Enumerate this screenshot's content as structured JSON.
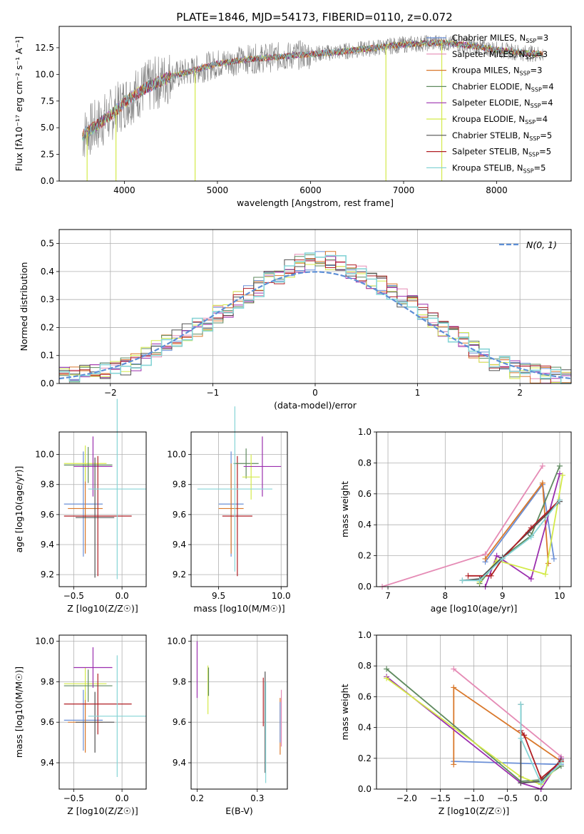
{
  "figure_title": "PLATE=1846, MJD=54173, FIBERID=0110, z=0.072",
  "colors": {
    "Chabrier MILES": "#6a8fd6",
    "Salpeter MILES": "#e58bb5",
    "Kroupa MILES": "#d9782b",
    "Chabrier ELODIE": "#5f8a5f",
    "Salpeter ELODIE": "#9b2fae",
    "Kroupa ELODIE": "#d4ea4a",
    "Chabrier STELIB": "#505050",
    "Salpeter STELIB": "#b01e24",
    "Kroupa STELIB": "#86d4d6",
    "gaussian": "#5d8fd6"
  },
  "chart_data": [
    {
      "id": "spectrum",
      "type": "line",
      "title": "PLATE=1846, MJD=54173, FIBERID=0110, z=0.072",
      "xlabel": "wavelength [Angstrom, rest frame]",
      "ylabel": "Flux [fλ10⁻¹⁷ erg cm⁻² s⁻¹ A⁻¹]",
      "xlim": [
        3300,
        8800
      ],
      "ylim": [
        0,
        14.5
      ],
      "xticks": [
        4000,
        5000,
        6000,
        7000,
        8000
      ],
      "yticks": [
        0.0,
        2.5,
        5.0,
        7.5,
        10.0,
        12.5
      ],
      "legend_position": "right",
      "legend": [
        "Chabrier MILES, N_SSP=3",
        "Salpeter MILES, N_SSP=3",
        "Kroupa MILES, N_SSP=3",
        "Chabrier ELODIE, N_SSP=4",
        "Salpeter ELODIE, N_SSP=4",
        "Kroupa ELODIE, N_SSP=4",
        "Chabrier STELIB, N_SSP=5",
        "Salpeter STELIB, N_SSP=5",
        "Kroupa STELIB, N_SSP=5"
      ],
      "legend_parts": [
        {
          "pre": "Chabrier MILES, N",
          "sub": "SSP",
          "post": "=3"
        },
        {
          "pre": "Salpeter MILES, N",
          "sub": "SSP",
          "post": "=3"
        },
        {
          "pre": "Kroupa MILES, N",
          "sub": "SSP",
          "post": "=3"
        },
        {
          "pre": "Chabrier ELODIE, N",
          "sub": "SSP",
          "post": "=4"
        },
        {
          "pre": "Salpeter ELODIE, N",
          "sub": "SSP",
          "post": "=4"
        },
        {
          "pre": "Kroupa ELODIE, N",
          "sub": "SSP",
          "post": "=4"
        },
        {
          "pre": "Chabrier STELIB, N",
          "sub": "SSP",
          "post": "=5"
        },
        {
          "pre": "Salpeter STELIB, N",
          "sub": "SSP",
          "post": "=5"
        },
        {
          "pre": "Kroupa STELIB, N",
          "sub": "SSP",
          "post": "=5"
        }
      ],
      "data_range": [
        3550,
        8500
      ],
      "continuum": [
        [
          3550,
          4.3
        ],
        [
          3700,
          5.2
        ],
        [
          3900,
          6.5
        ],
        [
          4000,
          7.4
        ],
        [
          4200,
          8.6
        ],
        [
          4500,
          9.8
        ],
        [
          4800,
          10.5
        ],
        [
          5000,
          11.0
        ],
        [
          5300,
          11.4
        ],
        [
          5600,
          11.6
        ],
        [
          6000,
          11.9
        ],
        [
          6300,
          12.1
        ],
        [
          6600,
          12.4
        ],
        [
          7000,
          12.8
        ],
        [
          7400,
          13.0
        ],
        [
          7800,
          12.6
        ],
        [
          8000,
          12.3
        ],
        [
          8300,
          12.0
        ],
        [
          8500,
          11.9
        ]
      ],
      "spikes": [
        {
          "x": 3600,
          "y": 0.0
        },
        {
          "x": 3910,
          "y": 0.0
        },
        {
          "x": 4760,
          "y": 0.0
        },
        {
          "x": 6810,
          "y": 0.0
        },
        {
          "x": 7410,
          "y": 0.0
        }
      ]
    },
    {
      "id": "residuals",
      "type": "histogram",
      "xlabel": "(data-model)/error",
      "ylabel": "Normed distribution",
      "xlim": [
        -2.5,
        2.5
      ],
      "ylim": [
        0,
        0.55
      ],
      "xticks": [
        -2,
        -1,
        0,
        1,
        2
      ],
      "yticks": [
        0.0,
        0.1,
        0.2,
        0.3,
        0.4,
        0.5
      ],
      "grid": true,
      "legend_position": "top-right",
      "gaussian_label": "N(0, 1)",
      "bin_width": 0.1,
      "base_hist": [
        0.025,
        0.03,
        0.035,
        0.04,
        0.048,
        0.055,
        0.065,
        0.08,
        0.1,
        0.12,
        0.14,
        0.16,
        0.18,
        0.2,
        0.22,
        0.245,
        0.27,
        0.295,
        0.32,
        0.345,
        0.37,
        0.39,
        0.41,
        0.43,
        0.44,
        0.445,
        0.44,
        0.43,
        0.41,
        0.39,
        0.37,
        0.35,
        0.33,
        0.305,
        0.28,
        0.26,
        0.23,
        0.2,
        0.17,
        0.15,
        0.12,
        0.1,
        0.08,
        0.065,
        0.05,
        0.04,
        0.035,
        0.03,
        0.025,
        0.022
      ]
    },
    {
      "id": "age-vs-z",
      "type": "errorbar",
      "xlabel": "Z [log10(Z/Z☉)]",
      "ylabel": "age [log10(age/yr)]",
      "xlim": [
        -0.65,
        0.25
      ],
      "ylim": [
        9.12,
        10.15
      ],
      "xticks": [
        -0.5,
        0.0
      ],
      "yticks": [
        9.2,
        9.4,
        9.6,
        9.8,
        10.0
      ],
      "points": [
        {
          "series": "Chabrier MILES",
          "x": -0.4,
          "xerr": 0.2,
          "y": 9.67,
          "yerr": 0.35
        },
        {
          "series": "Kroupa MILES",
          "x": -0.38,
          "xerr": 0.18,
          "y": 9.64,
          "yerr": 0.3
        },
        {
          "series": "Kroupa ELODIE",
          "x": -0.38,
          "xerr": 0.22,
          "y": 9.94,
          "yerr": 0.12
        },
        {
          "series": "Chabrier ELODIE",
          "x": -0.35,
          "xerr": 0.25,
          "y": 9.93,
          "yerr": 0.12
        },
        {
          "series": "Salpeter ELODIE",
          "x": -0.3,
          "xerr": 0.2,
          "y": 9.92,
          "yerr": 0.2
        },
        {
          "series": "Chabrier STELIB",
          "x": -0.28,
          "xerr": 0.2,
          "y": 9.58,
          "yerr": 0.4
        },
        {
          "series": "Salpeter STELIB",
          "x": -0.25,
          "xerr": 0.35,
          "y": 9.59,
          "yerr": 0.4
        },
        {
          "series": "Kroupa STELIB",
          "x": -0.05,
          "xerr": 0.3,
          "y": 9.77,
          "yerr": 0.6
        }
      ]
    },
    {
      "id": "age-vs-mass",
      "type": "errorbar",
      "xlabel": "mass [log10(M/M☉)]",
      "ylabel": "",
      "xlim": [
        9.28,
        10.05
      ],
      "ylim": [
        9.12,
        10.15
      ],
      "xticks": [
        9.5,
        10.0
      ],
      "yticks": [
        9.2,
        9.4,
        9.6,
        9.8,
        10.0
      ],
      "points": [
        {
          "series": "Chabrier MILES",
          "x": 9.6,
          "xerr": 0.1,
          "y": 9.67,
          "yerr": 0.35
        },
        {
          "series": "Kroupa MILES",
          "x": 9.6,
          "xerr": 0.1,
          "y": 9.64,
          "yerr": 0.3
        },
        {
          "series": "Salpeter STELIB",
          "x": 9.65,
          "xerr": 0.12,
          "y": 9.59,
          "yerr": 0.4
        },
        {
          "series": "Chabrier ELODIE",
          "x": 9.72,
          "xerr": 0.1,
          "y": 9.94,
          "yerr": 0.1
        },
        {
          "series": "Kroupa ELODIE",
          "x": 9.76,
          "xerr": 0.07,
          "y": 9.85,
          "yerr": 0.15
        },
        {
          "series": "Salpeter ELODIE",
          "x": 9.85,
          "xerr": 0.15,
          "y": 9.92,
          "yerr": 0.2
        },
        {
          "series": "Kroupa STELIB",
          "x": 9.63,
          "xerr": 0.3,
          "y": 9.77,
          "yerr": 0.55
        }
      ]
    },
    {
      "id": "weight-vs-age",
      "type": "line",
      "xlabel": "age [log10(age/yr)]",
      "ylabel": "mass weight",
      "xlim": [
        6.8,
        10.2
      ],
      "ylim": [
        0,
        1.0
      ],
      "xticks": [
        7,
        8,
        9,
        10
      ],
      "yticks": [
        0.0,
        0.2,
        0.4,
        0.6,
        0.8,
        1.0
      ],
      "grid": true,
      "series": [
        {
          "name": "Chabrier MILES",
          "points": [
            [
              8.7,
              0.16
            ],
            [
              9.7,
              0.66
            ],
            [
              9.9,
              0.18
            ]
          ]
        },
        {
          "name": "Salpeter MILES",
          "points": [
            [
              6.9,
              0.0
            ],
            [
              8.7,
              0.21
            ],
            [
              9.7,
              0.78
            ]
          ]
        },
        {
          "name": "Kroupa MILES",
          "points": [
            [
              8.7,
              0.18
            ],
            [
              9.7,
              0.67
            ],
            [
              9.8,
              0.15
            ]
          ]
        },
        {
          "name": "Chabrier ELODIE",
          "points": [
            [
              8.6,
              0.02
            ],
            [
              8.9,
              0.16
            ],
            [
              9.5,
              0.33
            ],
            [
              10.0,
              0.78
            ]
          ]
        },
        {
          "name": "Salpeter ELODIE",
          "points": [
            [
              8.7,
              0.0
            ],
            [
              8.9,
              0.2
            ],
            [
              9.5,
              0.05
            ],
            [
              10.0,
              0.73
            ]
          ]
        },
        {
          "name": "Kroupa ELODIE",
          "points": [
            [
              8.6,
              0.03
            ],
            [
              8.9,
              0.17
            ],
            [
              9.75,
              0.08
            ],
            [
              10.05,
              0.72
            ]
          ]
        },
        {
          "name": "Chabrier STELIB",
          "points": [
            [
              8.3,
              0.04
            ],
            [
              8.6,
              0.05
            ],
            [
              9.0,
              0.19
            ],
            [
              9.45,
              0.35
            ],
            [
              10.0,
              0.55
            ]
          ]
        },
        {
          "name": "Salpeter STELIB",
          "points": [
            [
              8.4,
              0.07
            ],
            [
              8.8,
              0.07
            ],
            [
              9.0,
              0.18
            ],
            [
              9.5,
              0.38
            ],
            [
              10.0,
              0.56
            ]
          ]
        },
        {
          "name": "Kroupa STELIB",
          "points": [
            [
              8.3,
              0.04
            ],
            [
              8.6,
              0.04
            ],
            [
              9.0,
              0.18
            ],
            [
              9.5,
              0.32
            ],
            [
              10.0,
              0.56
            ]
          ]
        }
      ]
    },
    {
      "id": "mass-vs-z",
      "type": "errorbar",
      "xlabel": "Z [log10(Z/Z☉)]",
      "ylabel": "mass [log10(M/M☉)]",
      "xlim": [
        -0.65,
        0.25
      ],
      "ylim": [
        9.27,
        10.03
      ],
      "xticks": [
        -0.5,
        0.0
      ],
      "yticks": [
        9.4,
        9.6,
        9.8,
        10.0
      ],
      "points": [
        {
          "series": "Chabrier MILES",
          "x": -0.4,
          "xerr": 0.2,
          "y": 9.61,
          "yerr": 0.15
        },
        {
          "series": "Kroupa MILES",
          "x": -0.38,
          "xerr": 0.18,
          "y": 9.6,
          "yerr": 0.15
        },
        {
          "series": "Kroupa ELODIE",
          "x": -0.38,
          "xerr": 0.22,
          "y": 9.79,
          "yerr": 0.08
        },
        {
          "series": "Chabrier ELODIE",
          "x": -0.35,
          "xerr": 0.25,
          "y": 9.78,
          "yerr": 0.08
        },
        {
          "series": "Salpeter ELODIE",
          "x": -0.3,
          "xerr": 0.2,
          "y": 9.87,
          "yerr": 0.1
        },
        {
          "series": "Chabrier STELIB",
          "x": -0.28,
          "xerr": 0.2,
          "y": 9.6,
          "yerr": 0.15
        },
        {
          "series": "Salpeter STELIB",
          "x": -0.25,
          "xerr": 0.35,
          "y": 9.69,
          "yerr": 0.15
        },
        {
          "series": "Kroupa STELIB",
          "x": -0.05,
          "xerr": 0.3,
          "y": 9.63,
          "yerr": 0.3
        }
      ]
    },
    {
      "id": "mass-vs-ebv",
      "type": "errorbar",
      "xlabel": "E(B-V)",
      "ylabel": "",
      "xlim": [
        0.19,
        0.35
      ],
      "ylim": [
        9.27,
        10.03
      ],
      "xticks": [
        0.2,
        0.3
      ],
      "yticks": [
        9.4,
        9.6,
        9.8,
        10.0
      ],
      "points": [
        {
          "series": "Salpeter ELODIE",
          "x": 0.2,
          "y": 9.86,
          "yerr": 0.14
        },
        {
          "series": "Kroupa ELODIE",
          "x": 0.218,
          "y": 9.76,
          "yerr": 0.12
        },
        {
          "series": "Chabrier ELODIE",
          "x": 0.219,
          "y": 9.8,
          "yerr": 0.07
        },
        {
          "series": "Salpeter STELIB",
          "x": 0.31,
          "y": 9.7,
          "yerr": 0.12
        },
        {
          "series": "Chabrier STELIB",
          "x": 0.313,
          "y": 9.6,
          "yerr": 0.25
        },
        {
          "series": "Kroupa STELIB",
          "x": 0.314,
          "y": 9.55,
          "yerr": 0.25
        },
        {
          "series": "Kroupa MILES",
          "x": 0.338,
          "y": 9.58,
          "yerr": 0.14
        },
        {
          "series": "Salpeter MILES",
          "x": 0.34,
          "y": 9.62,
          "yerr": 0.14
        },
        {
          "series": "Chabrier MILES",
          "x": 0.338,
          "y": 9.6,
          "yerr": 0.1
        }
      ]
    },
    {
      "id": "weight-vs-z",
      "type": "line",
      "xlabel": "Z [log10(Z/Z☉)]",
      "ylabel": "mass weight",
      "xlim": [
        -2.45,
        0.45
      ],
      "ylim": [
        0,
        1.0
      ],
      "xticks": [
        -2.0,
        -1.5,
        -1.0,
        -0.5,
        0.0
      ],
      "yticks": [
        0.0,
        0.2,
        0.4,
        0.6,
        0.8,
        1.0
      ],
      "grid": true,
      "series": [
        {
          "name": "Chabrier MILES",
          "points": [
            [
              -1.3,
              0.18
            ],
            [
              0.3,
              0.16
            ]
          ]
        },
        {
          "name": "Salpeter MILES",
          "points": [
            [
              -1.3,
              0.78
            ],
            [
              0.3,
              0.21
            ]
          ]
        },
        {
          "name": "Kroupa MILES",
          "points": [
            [
              -1.3,
              0.16
            ],
            [
              -1.3,
              0.66
            ],
            [
              0.3,
              0.18
            ]
          ]
        },
        {
          "name": "Chabrier ELODIE",
          "points": [
            [
              -2.3,
              0.78
            ],
            [
              -0.3,
              0.05
            ],
            [
              0.0,
              0.06
            ],
            [
              0.3,
              0.15
            ]
          ]
        },
        {
          "name": "Salpeter ELODIE",
          "points": [
            [
              -2.3,
              0.73
            ],
            [
              -0.3,
              0.04
            ],
            [
              0.0,
              0.0
            ],
            [
              0.3,
              0.2
            ]
          ]
        },
        {
          "name": "Kroupa ELODIE",
          "points": [
            [
              -2.3,
              0.72
            ],
            [
              -0.3,
              0.08
            ],
            [
              0.0,
              0.03
            ],
            [
              0.3,
              0.17
            ]
          ]
        },
        {
          "name": "Chabrier STELIB",
          "points": [
            [
              -0.3,
              0.55
            ],
            [
              -0.3,
              0.04
            ],
            [
              0.0,
              0.05
            ],
            [
              0.3,
              0.19
            ]
          ]
        },
        {
          "name": "Salpeter STELIB",
          "points": [
            [
              -0.3,
              0.38
            ],
            [
              -0.25,
              0.35
            ],
            [
              0.0,
              0.07
            ],
            [
              0.3,
              0.18
            ]
          ]
        },
        {
          "name": "Kroupa STELIB",
          "points": [
            [
              -0.3,
              0.55
            ],
            [
              -0.3,
              0.33
            ],
            [
              0.0,
              0.04
            ],
            [
              0.3,
              0.17
            ]
          ]
        }
      ]
    }
  ]
}
